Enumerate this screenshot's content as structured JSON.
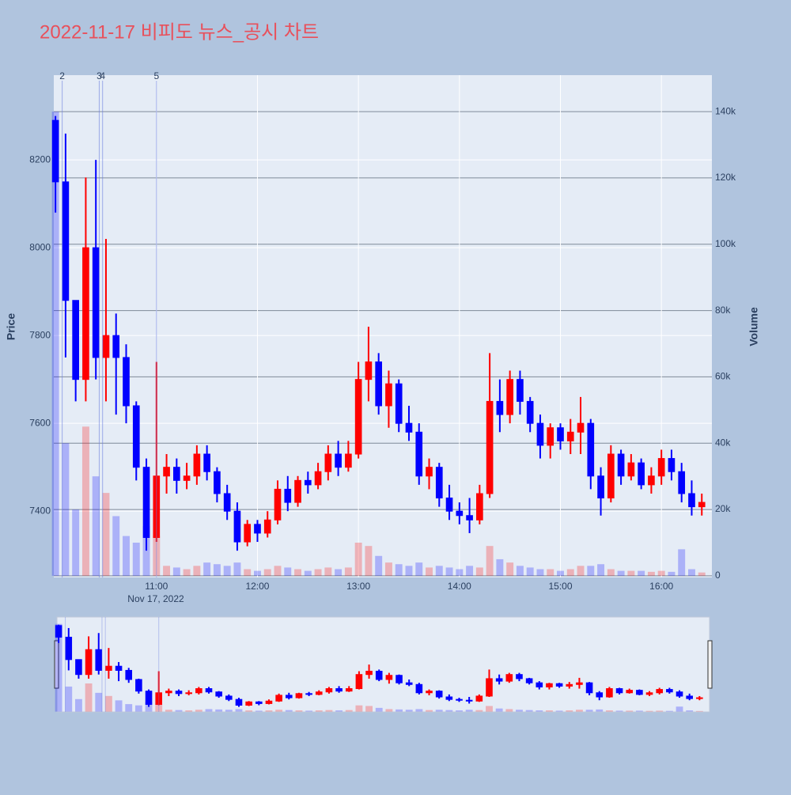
{
  "chart_data": {
    "type": "candlestick",
    "title": "2022-11-17 비피도 뉴스_공시 차트",
    "x": [
      "10:00",
      "10:06",
      "10:12",
      "10:18",
      "10:24",
      "10:30",
      "10:36",
      "10:42",
      "10:48",
      "10:54",
      "11:00",
      "11:06",
      "11:12",
      "11:18",
      "11:24",
      "11:30",
      "11:36",
      "11:42",
      "11:48",
      "11:54",
      "12:00",
      "12:06",
      "12:12",
      "12:18",
      "12:24",
      "12:30",
      "12:36",
      "12:42",
      "12:48",
      "12:54",
      "13:00",
      "13:06",
      "13:12",
      "13:18",
      "13:24",
      "13:30",
      "13:36",
      "13:42",
      "13:48",
      "13:54",
      "14:00",
      "14:06",
      "14:12",
      "14:18",
      "14:24",
      "14:30",
      "14:36",
      "14:42",
      "14:48",
      "14:54",
      "15:00",
      "15:06",
      "15:12",
      "15:18",
      "15:24",
      "15:30",
      "15:36",
      "15:42",
      "15:48",
      "15:54",
      "16:00",
      "16:06",
      "16:12",
      "16:18",
      "16:24"
    ],
    "open": [
      8290,
      8150,
      7880,
      7700,
      8000,
      7750,
      7800,
      7750,
      7640,
      7500,
      7340,
      7480,
      7500,
      7470,
      7480,
      7530,
      7490,
      7440,
      7400,
      7330,
      7370,
      7350,
      7380,
      7450,
      7420,
      7470,
      7460,
      7490,
      7530,
      7500,
      7530,
      7700,
      7740,
      7640,
      7690,
      7600,
      7580,
      7480,
      7500,
      7430,
      7400,
      7390,
      7380,
      7440,
      7650,
      7620,
      7700,
      7650,
      7600,
      7550,
      7590,
      7560,
      7580,
      7600,
      7480,
      7430,
      7530,
      7480,
      7510,
      7460,
      7480,
      7520,
      7490,
      7440,
      7410
    ],
    "high": [
      8300,
      8260,
      7880,
      8160,
      8200,
      8020,
      7850,
      7780,
      7650,
      7520,
      7740,
      7530,
      7520,
      7510,
      7550,
      7550,
      7500,
      7460,
      7420,
      7380,
      7380,
      7400,
      7470,
      7480,
      7480,
      7490,
      7510,
      7550,
      7560,
      7560,
      7740,
      7820,
      7760,
      7720,
      7700,
      7640,
      7600,
      7520,
      7510,
      7460,
      7420,
      7430,
      7460,
      7760,
      7700,
      7720,
      7720,
      7660,
      7620,
      7600,
      7600,
      7610,
      7660,
      7610,
      7500,
      7550,
      7540,
      7530,
      7520,
      7500,
      7540,
      7540,
      7510,
      7470,
      7440
    ],
    "low": [
      8080,
      7750,
      7650,
      7650,
      7700,
      7650,
      7620,
      7600,
      7470,
      7310,
      7330,
      7440,
      7440,
      7450,
      7460,
      7470,
      7420,
      7380,
      7310,
      7320,
      7330,
      7340,
      7370,
      7400,
      7410,
      7440,
      7450,
      7470,
      7480,
      7490,
      7520,
      7650,
      7620,
      7590,
      7580,
      7560,
      7460,
      7450,
      7410,
      7380,
      7370,
      7350,
      7370,
      7430,
      7580,
      7600,
      7620,
      7580,
      7520,
      7520,
      7540,
      7530,
      7530,
      7450,
      7390,
      7420,
      7460,
      7470,
      7450,
      7440,
      7460,
      7470,
      7420,
      7390,
      7390
    ],
    "close": [
      8150,
      7880,
      7700,
      8000,
      7750,
      7800,
      7750,
      7640,
      7500,
      7340,
      7480,
      7500,
      7470,
      7480,
      7530,
      7490,
      7440,
      7400,
      7330,
      7370,
      7350,
      7380,
      7450,
      7420,
      7470,
      7460,
      7490,
      7530,
      7500,
      7530,
      7700,
      7740,
      7640,
      7690,
      7600,
      7580,
      7480,
      7500,
      7430,
      7400,
      7390,
      7380,
      7440,
      7650,
      7620,
      7700,
      7650,
      7600,
      7550,
      7590,
      7560,
      7580,
      7600,
      7480,
      7430,
      7530,
      7480,
      7510,
      7460,
      7480,
      7520,
      7490,
      7440,
      7410,
      7420
    ],
    "volume": [
      140000,
      40000,
      20000,
      45000,
      30000,
      25000,
      18000,
      12000,
      10000,
      15000,
      12000,
      3000,
      2500,
      2000,
      3000,
      4000,
      3500,
      3000,
      4000,
      2000,
      1500,
      2000,
      3000,
      2500,
      2000,
      1500,
      2000,
      2500,
      2000,
      2500,
      10000,
      9000,
      6000,
      4000,
      3500,
      3000,
      4000,
      2500,
      3000,
      2500,
      2000,
      3000,
      2500,
      9000,
      5000,
      4000,
      3000,
      2500,
      2000,
      2000,
      1500,
      2000,
      3000,
      3000,
      3500,
      2000,
      1500,
      1500,
      1500,
      1200,
      1500,
      1200,
      8000,
      2000,
      1000
    ],
    "increasing_color": "#ff0000",
    "decreasing_color": "#0000ff",
    "xlim": [
      "09:59",
      "16:30"
    ],
    "xticks": [
      "11:00",
      "12:00",
      "13:00",
      "14:00",
      "15:00",
      "16:00"
    ],
    "x_date_label": "Nov 17, 2022",
    "ylabel": "Price",
    "y2label": "Volume",
    "ylim": [
      7249,
      8393
    ],
    "yticks": [
      7400,
      7600,
      7800,
      8000,
      8200
    ],
    "y2lim": [
      -500,
      151000
    ],
    "y2ticks": [
      0,
      {
        "value": 20000,
        "label": "20k"
      },
      {
        "value": 40000,
        "label": "40k"
      },
      {
        "value": 60000,
        "label": "60k"
      },
      {
        "value": 80000,
        "label": "80k"
      },
      {
        "value": 100000,
        "label": "100k"
      },
      {
        "value": 120000,
        "label": "120k"
      },
      {
        "value": 140000,
        "label": "140k"
      }
    ],
    "events": [
      {
        "x": "10:04",
        "label": "2"
      },
      {
        "x": "10:26",
        "label": "3"
      },
      {
        "x": "10:28",
        "label": "4"
      },
      {
        "x": "11:00",
        "label": "5"
      }
    ]
  }
}
